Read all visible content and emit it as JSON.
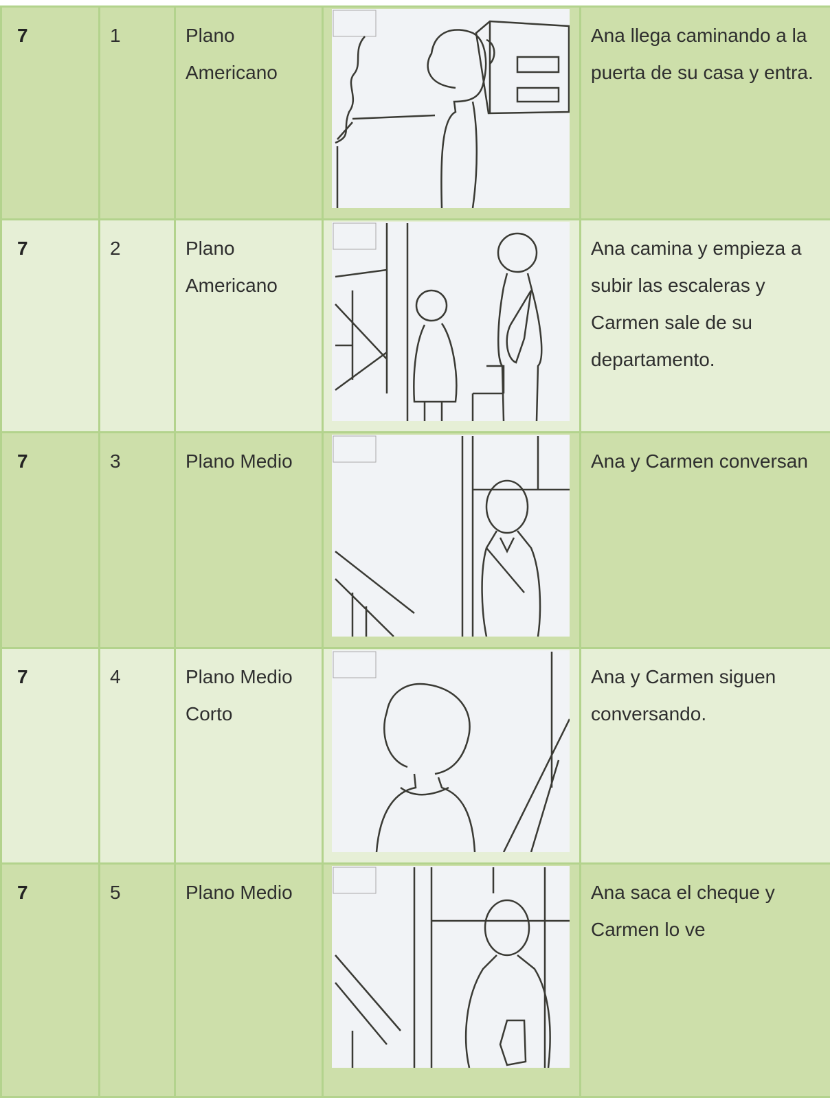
{
  "table": {
    "rows": [
      [
        "7",
        "1",
        "Plano Americano",
        "Ana llega caminando a la puerta de su casa y entra."
      ],
      [
        "7",
        "2",
        "Plano Americano",
        "Ana camina y empieza a subir las escaleras y Carmen sale de su departamento."
      ],
      [
        "7",
        "3",
        "Plano Medio",
        "Ana y Carmen conversan"
      ],
      [
        "7",
        "4",
        "Plano Medio Corto",
        "Ana y Carmen siguen conversando."
      ],
      [
        "7",
        "5",
        "Plano Medio",
        "Ana saca el cheque y Carmen lo ve"
      ]
    ]
  }
}
